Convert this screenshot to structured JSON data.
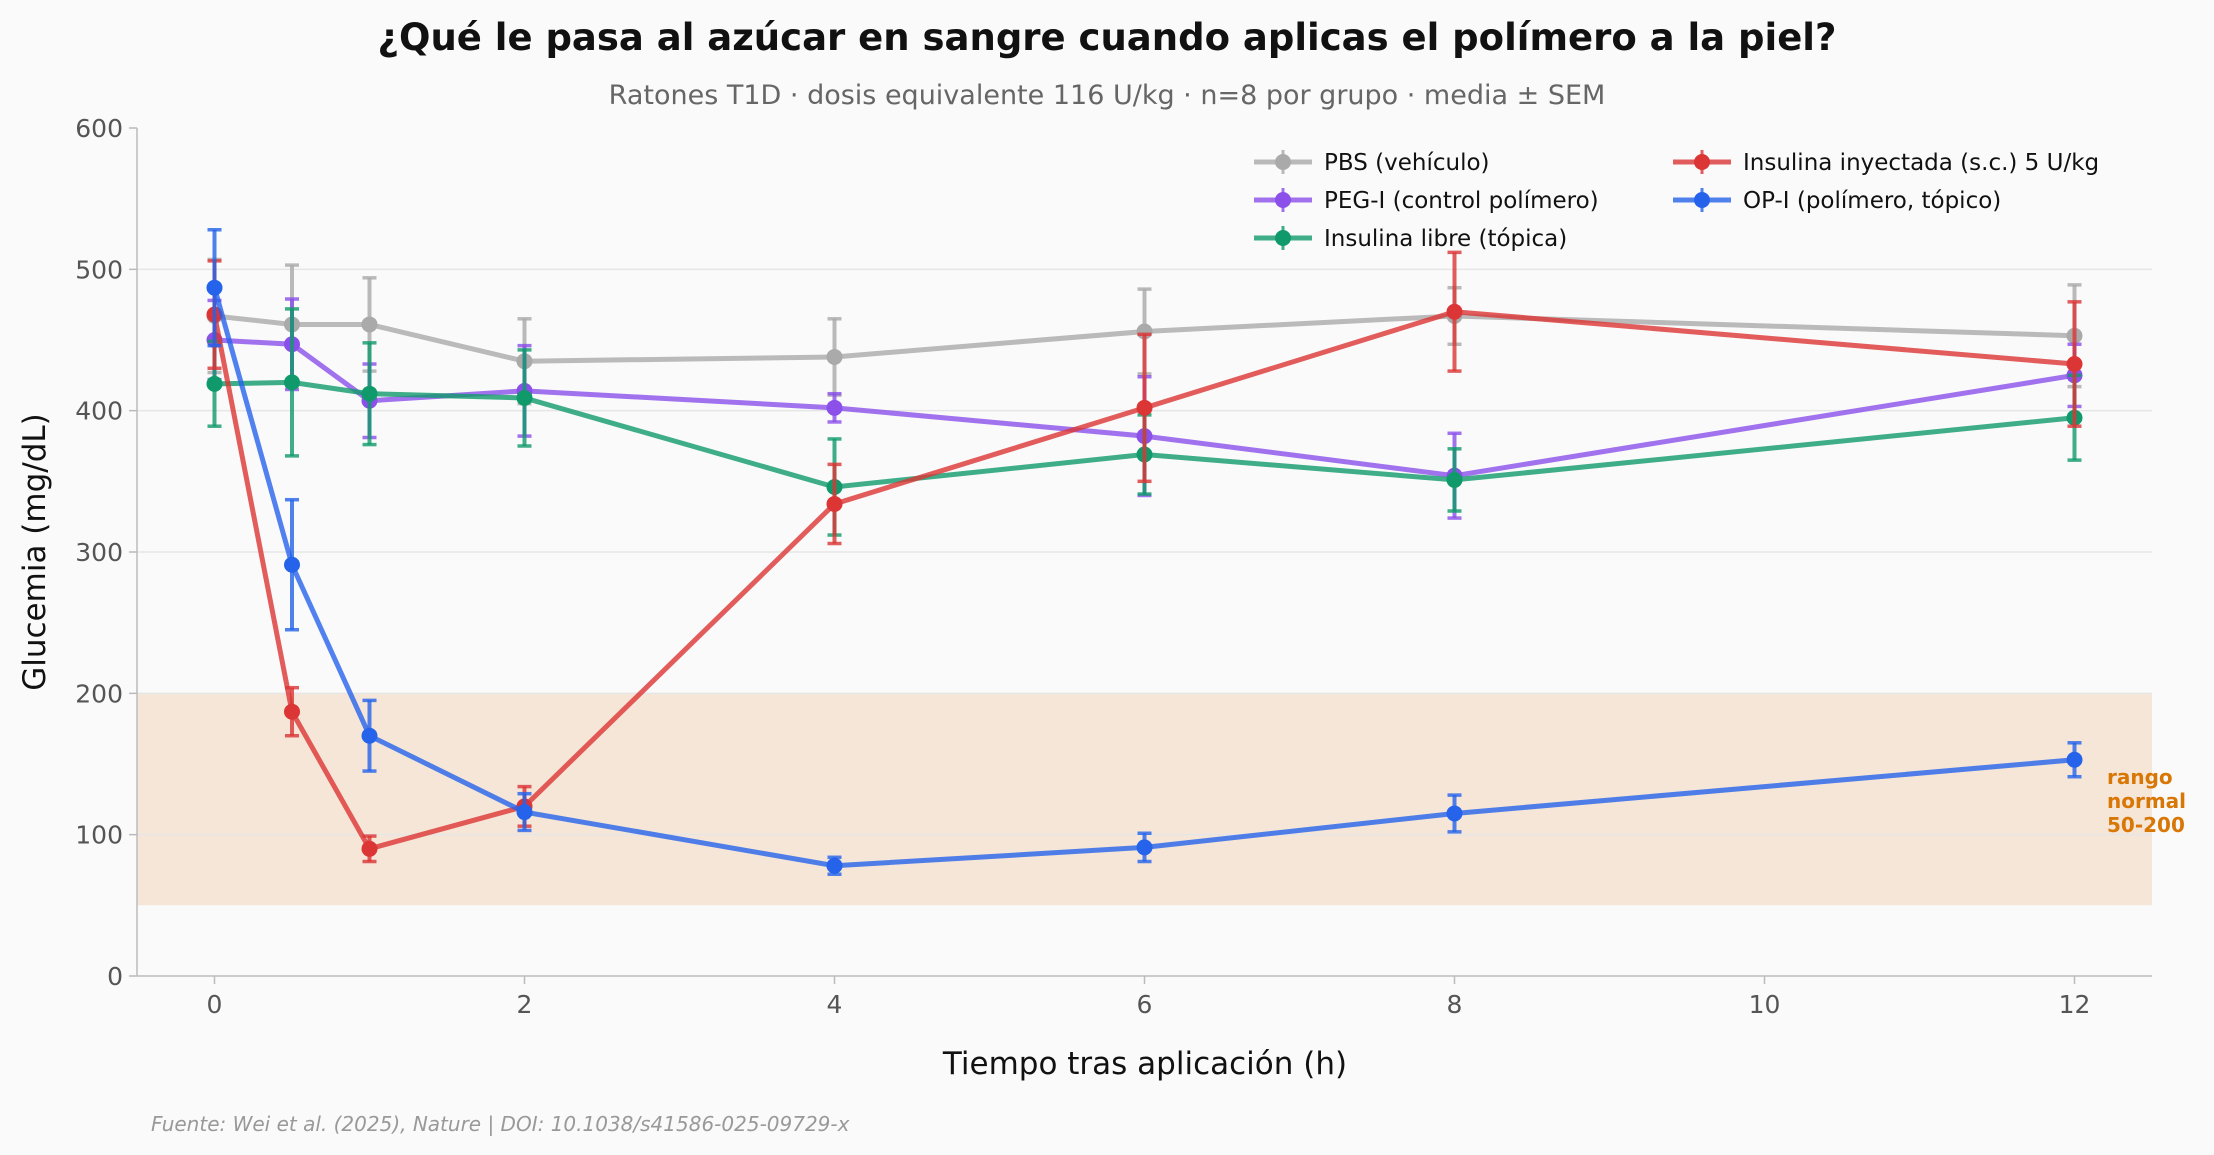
{
  "chart_data": {
    "type": "line",
    "title": "¿Qué le pasa al azúcar en sangre cuando aplicas el polímero a la piel?",
    "subtitle": "Ratones T1D · dosis equivalente 116 U/kg · n=8 por grupo · media ± SEM",
    "xlabel": "Tiempo tras aplicación (h)",
    "ylabel": "Glucemia (mg/dL)",
    "xlim": [
      -0.5,
      12.5
    ],
    "ylim": [
      0,
      600
    ],
    "xticks": [
      0,
      2,
      4,
      6,
      8,
      10,
      12
    ],
    "yticks": [
      0,
      100,
      200,
      300,
      400,
      500,
      600
    ],
    "grid": "horizontal",
    "legend_placement": "top-right",
    "x": [
      0,
      0.5,
      1,
      2,
      4,
      6,
      8,
      12
    ],
    "series": [
      {
        "name": "PBS (vehículo)",
        "color": "#aaaaaa",
        "values": [
          467,
          461,
          461,
          435,
          438,
          456,
          467,
          453
        ],
        "sem": [
          40,
          42,
          33,
          30,
          27,
          30,
          20,
          36
        ]
      },
      {
        "name": "PEG-I (control polímero)",
        "color": "#8b50ea",
        "values": [
          450,
          447,
          407,
          414,
          402,
          382,
          354,
          425
        ],
        "sem": [
          28,
          32,
          26,
          32,
          10,
          42,
          30,
          22
        ]
      },
      {
        "name": "Insulina libre (tópica)",
        "color": "#109a6c",
        "values": [
          419,
          420,
          412,
          409,
          346,
          369,
          351,
          395
        ],
        "sem": [
          30,
          52,
          36,
          34,
          34,
          28,
          22,
          30
        ]
      },
      {
        "name": "Insulina inyectada (s.c.) 5 U/kg",
        "color": "#dc3535",
        "values": [
          468,
          187,
          90,
          120,
          334,
          402,
          470,
          433
        ],
        "sem": [
          38,
          17,
          9,
          14,
          28,
          52,
          42,
          44
        ]
      },
      {
        "name": "OP-I (polímero, tópico)",
        "color": "#2563eb",
        "values": [
          487,
          291,
          170,
          116,
          78,
          91,
          115,
          153
        ],
        "sem": [
          41,
          46,
          25,
          13,
          6,
          10,
          13,
          12
        ]
      }
    ],
    "normal_range": {
      "low": 50,
      "high": 200,
      "color": "#f5e6d8",
      "label_lines": [
        "rango",
        "normal",
        "50-200"
      ],
      "label_color": "#d97706"
    },
    "source": "Fuente: Wei et al. (2025), Nature | DOI: 10.1038/s41586-025-09729-x"
  }
}
